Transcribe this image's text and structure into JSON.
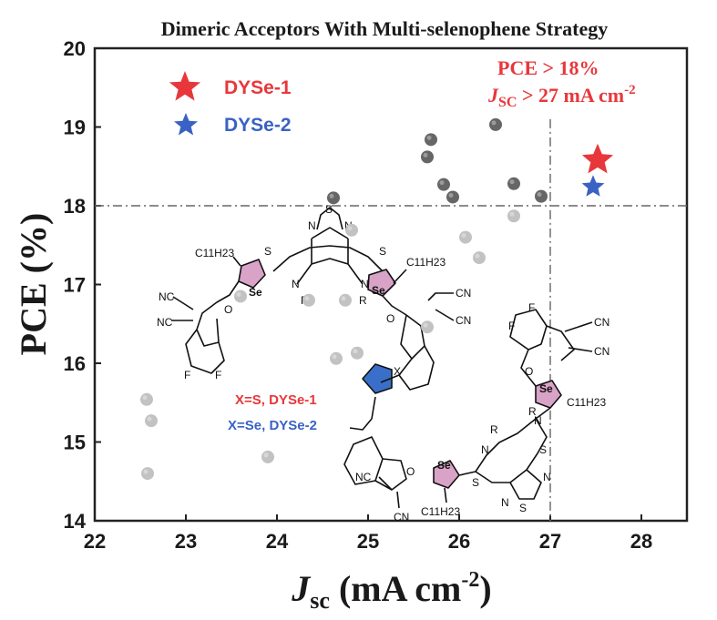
{
  "chart_data": {
    "type": "scatter",
    "title": "Dimeric Acceptors With Multi-selenophene Strategy",
    "xlabel_main": "J",
    "xlabel_sub": "sc",
    "xlabel_rest": " (mA cm",
    "xlabel_sup": "-2",
    "xlabel_close": ")",
    "ylabel": "PCE (%)",
    "xlim": [
      22,
      28.5
    ],
    "ylim": [
      14,
      20
    ],
    "xticks": [
      "22",
      "23",
      "24",
      "25",
      "26",
      "27",
      "28"
    ],
    "yticks": [
      "14",
      "15",
      "16",
      "17",
      "18",
      "19",
      "20"
    ],
    "reference_lines": {
      "y": 18,
      "x": 27
    },
    "series": [
      {
        "marker": "circle",
        "color": "#666666",
        "points": [
          [
            24.62,
            18.1
          ],
          [
            25.65,
            18.62
          ],
          [
            25.69,
            18.84
          ],
          [
            25.83,
            18.27
          ],
          [
            25.93,
            18.11
          ],
          [
            26.4,
            19.03
          ],
          [
            26.6,
            18.28
          ],
          [
            26.9,
            18.12
          ]
        ]
      },
      {
        "marker": "circle",
        "color": "#c2c2c2",
        "points": [
          [
            22.57,
            15.54
          ],
          [
            22.62,
            15.27
          ],
          [
            22.58,
            14.6
          ],
          [
            23.9,
            14.81
          ],
          [
            24.88,
            16.13
          ],
          [
            24.65,
            16.06
          ],
          [
            24.75,
            16.8
          ],
          [
            24.35,
            16.8
          ],
          [
            24.82,
            17.69
          ],
          [
            26.07,
            17.6
          ],
          [
            26.22,
            17.34
          ],
          [
            26.6,
            17.87
          ],
          [
            25.65,
            16.46
          ],
          [
            23.6,
            16.85
          ]
        ]
      },
      {
        "name": "DYSe-1",
        "marker": "star",
        "color": "#e8373b",
        "points": [
          [
            27.52,
            18.58
          ]
        ]
      },
      {
        "name": "DYSe-2",
        "marker": "star",
        "color": "#3a62c4",
        "points": [
          [
            27.47,
            18.24
          ]
        ]
      }
    ],
    "legend": {
      "placement": "top-left",
      "items": [
        {
          "label": "DYSe-1",
          "color": "#e8373b"
        },
        {
          "label": "DYSe-2",
          "color": "#3a62c4"
        }
      ]
    },
    "annotation": {
      "line1": "PCE > 18%",
      "line2_main": "J",
      "line2_sub": "SC",
      "line2_rest": " > 27 mA cm",
      "line2_sup": "-2"
    }
  },
  "molecule": {
    "x_s_label": "X=S, DYSe-1",
    "x_se_label": "X=Se, DYSe-2",
    "atom_se": "Se",
    "atom_s": "S",
    "atom_n": "N",
    "atom_x": "X",
    "atom_o": "O",
    "atom_f": "F",
    "atom_r": "R",
    "group_cn": "NC",
    "group_cn_r": "CN",
    "alkyl": "C11H23"
  },
  "colors": {
    "se_ring": "#d9a3c8",
    "x_ring": "#3a6fc9",
    "red": "#e8373b",
    "blue": "#3a62c4"
  }
}
